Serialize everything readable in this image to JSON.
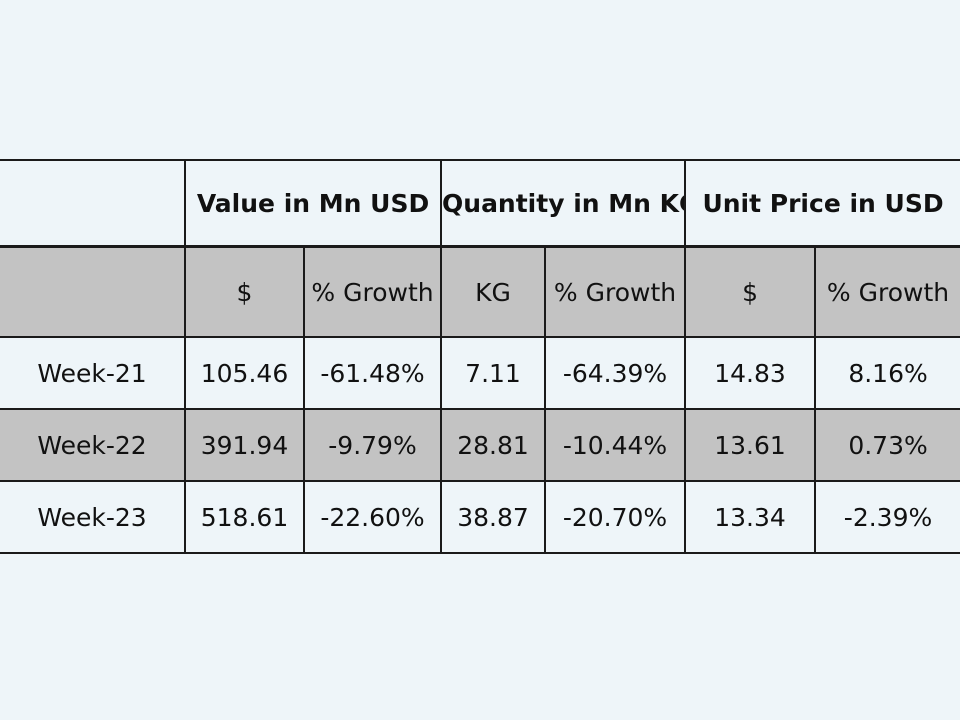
{
  "table": {
    "group_headers": [
      "",
      "Value in Mn USD",
      "Quantity in Mn KG",
      "Unit Price in USD"
    ],
    "sub_headers": [
      "",
      "$",
      "% Growth",
      "KG",
      "% Growth",
      "$",
      "% Growth"
    ],
    "rows": [
      {
        "week": "Week-21",
        "value_usd": "105.46",
        "value_growth": "-61.48%",
        "qty_kg": "7.11",
        "qty_growth": "-64.39%",
        "unit_price": "14.83",
        "price_growth": "8.16%"
      },
      {
        "week": "Week-22",
        "value_usd": "391.94",
        "value_growth": "-9.79%",
        "qty_kg": "28.81",
        "qty_growth": "-10.44%",
        "unit_price": "13.61",
        "price_growth": "0.73%"
      },
      {
        "week": "Week-23",
        "value_usd": "518.61",
        "value_growth": "-22.60%",
        "qty_kg": "38.87",
        "qty_growth": "-20.70%",
        "unit_price": "13.34",
        "price_growth": "-2.39%"
      }
    ]
  }
}
